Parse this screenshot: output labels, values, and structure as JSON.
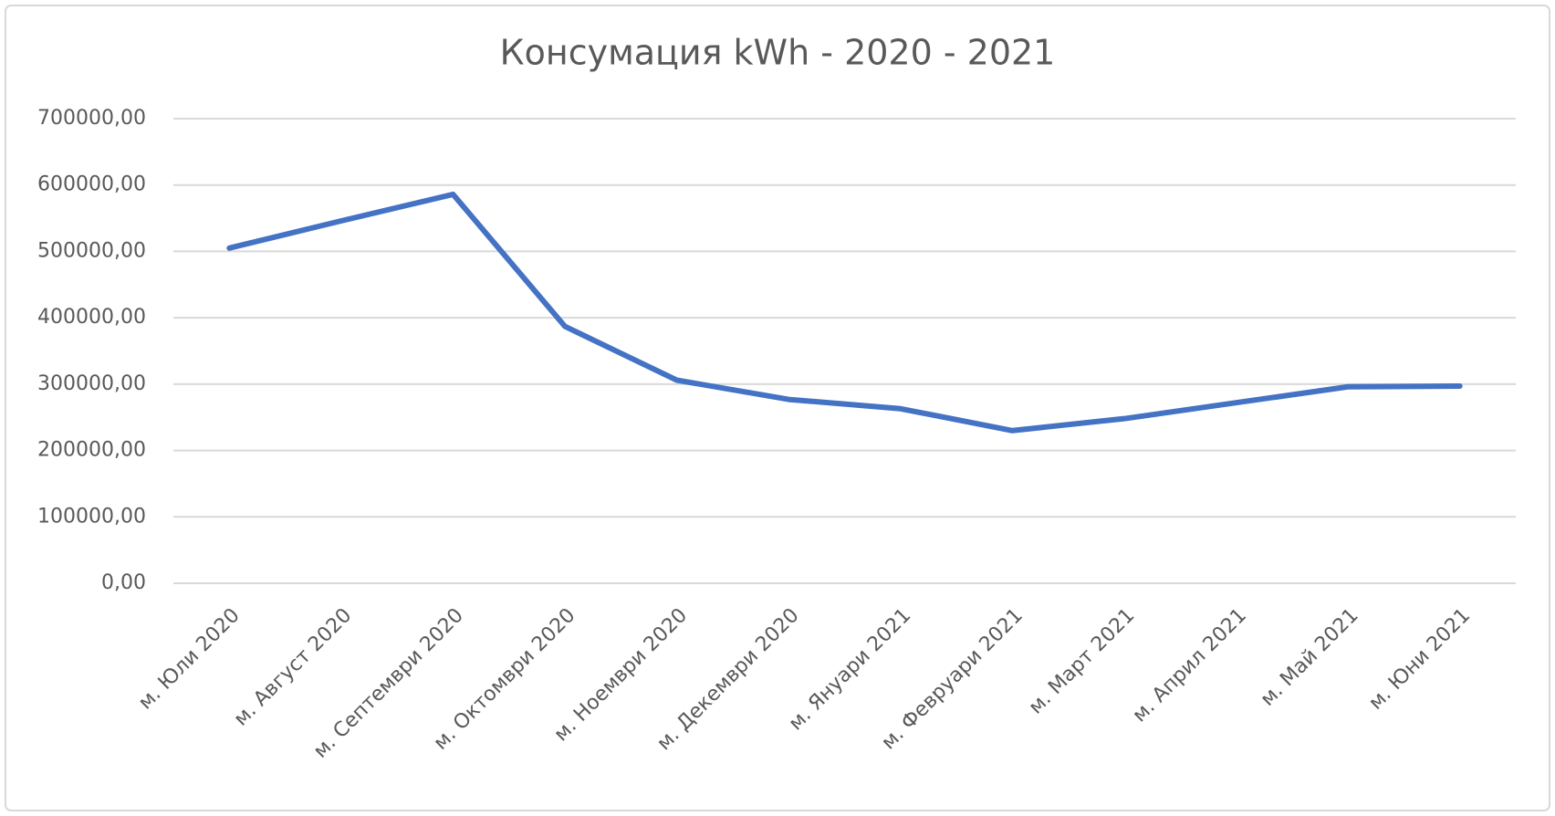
{
  "chart_data": {
    "type": "line",
    "title": "Консумация kWh - 2020 - 2021",
    "categories": [
      "м. Юли 2020",
      "м. Август 2020",
      "м. Септември 2020",
      "м. Октомври 2020",
      "м. Ноември 2020",
      "м. Декември 2020",
      "м. Януари 2021",
      "м. Февруари 2021",
      "м. Март 2021",
      "м. Април 2021",
      "м. Май 2021",
      "м. Юни 2021"
    ],
    "values": [
      505000,
      546000,
      586000,
      387000,
      306000,
      277000,
      263000,
      230000,
      248000,
      272000,
      296000,
      297000
    ],
    "color": "#4472c4",
    "ylim": [
      0,
      700000
    ],
    "yticks": [
      {
        "value": 0,
        "label": "0,00"
      },
      {
        "value": 100000,
        "label": "100000,00"
      },
      {
        "value": 200000,
        "label": "200000,00"
      },
      {
        "value": 300000,
        "label": "300000,00"
      },
      {
        "value": 400000,
        "label": "400000,00"
      },
      {
        "value": 500000,
        "label": "500000,00"
      },
      {
        "value": 600000,
        "label": "600000,00"
      },
      {
        "value": 700000,
        "label": "700000,00"
      }
    ],
    "grid": true
  }
}
